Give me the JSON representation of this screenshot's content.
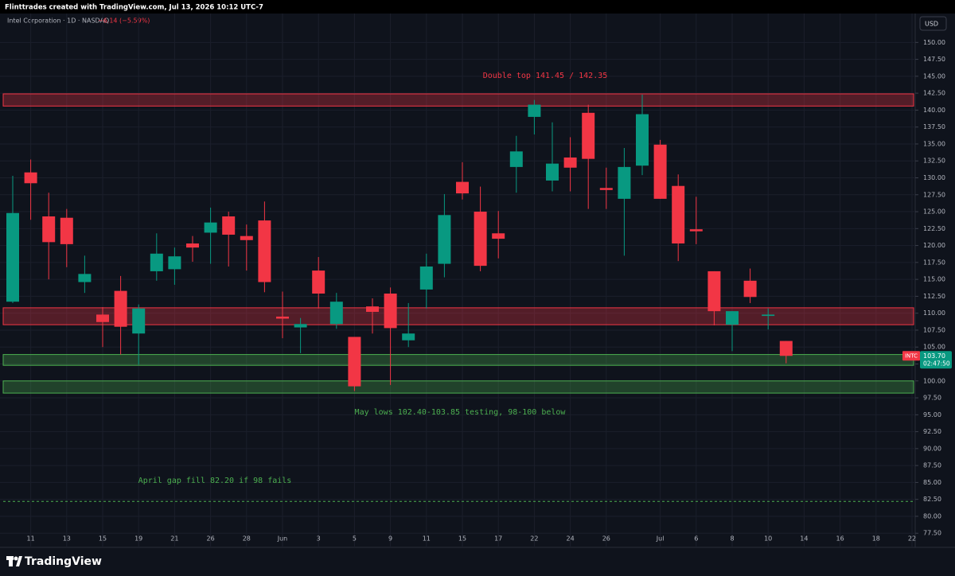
{
  "header": {
    "watermark": "Flinttrades created with TradingView.com, Jul 13, 2026 10:12 UTC-7"
  },
  "footer": {
    "brand": "TradingView"
  },
  "chart_data": {
    "type": "candlestick",
    "title": "Intel Corporation · 1D · NASDAQ",
    "change": "−6.14 (−5.59%)",
    "currency": "USD",
    "up_color": "#089981",
    "down_color": "#f23645",
    "grid": true,
    "categories": [
      null,
      "11",
      null,
      "13",
      null,
      "15",
      null,
      "19",
      null,
      "21",
      null,
      "26",
      null,
      "28",
      null,
      "Jun",
      null,
      "3",
      null,
      "5",
      null,
      "9",
      null,
      "11",
      null,
      "15",
      null,
      "17",
      null,
      "22",
      null,
      "24",
      null,
      "26",
      null,
      null,
      "Jul",
      null,
      "6",
      null,
      "8",
      null,
      "10",
      null,
      "14",
      null,
      "16",
      null,
      "18",
      null,
      "22"
    ],
    "open": [
      111.7,
      130.8,
      124.3,
      124.1,
      114.6,
      109.8,
      113.3,
      107.0,
      116.2,
      116.5,
      120.3,
      121.9,
      124.3,
      121.4,
      123.7,
      109.5,
      107.9,
      116.3,
      108.4,
      106.5,
      111.0,
      112.9,
      106.0,
      113.5,
      117.3,
      129.4,
      125.0,
      121.8,
      131.6,
      139.0,
      129.6,
      133.0,
      139.6,
      128.5,
      126.9,
      131.8,
      134.9,
      128.8,
      122.4,
      116.2,
      108.3,
      114.8,
      109.6,
      105.9,
      null,
      null,
      null,
      null,
      null,
      null,
      null
    ],
    "high": [
      130.3,
      132.7,
      127.8,
      125.4,
      118.5,
      110.9,
      115.5,
      111.3,
      121.8,
      119.7,
      121.4,
      125.6,
      125.0,
      123.1,
      126.5,
      113.2,
      109.3,
      118.3,
      113.0,
      106.5,
      112.2,
      113.8,
      111.5,
      118.8,
      127.6,
      132.3,
      128.7,
      125.1,
      136.2,
      141.5,
      138.2,
      136.0,
      140.8,
      131.5,
      134.4,
      142.3,
      135.6,
      130.5,
      127.2,
      116.2,
      110.3,
      116.6,
      110.7,
      105.9,
      null,
      null,
      null,
      null,
      null,
      null,
      null
    ],
    "low": [
      111.5,
      123.8,
      115.0,
      116.8,
      113.0,
      105.0,
      103.9,
      102.4,
      114.8,
      114.2,
      117.6,
      117.3,
      116.9,
      116.3,
      113.1,
      106.3,
      104.1,
      110.7,
      107.7,
      98.5,
      107.0,
      99.4,
      105.0,
      110.7,
      115.3,
      126.8,
      116.2,
      118.1,
      127.8,
      136.4,
      128.0,
      128.0,
      125.4,
      125.4,
      118.5,
      130.4,
      126.9,
      117.7,
      120.2,
      108.2,
      104.4,
      111.5,
      107.6,
      102.6,
      null,
      null,
      null,
      null,
      null,
      null,
      null
    ],
    "close": [
      124.8,
      129.2,
      120.5,
      120.2,
      115.8,
      108.7,
      108.0,
      110.7,
      118.8,
      118.4,
      119.7,
      123.4,
      121.6,
      120.8,
      114.6,
      109.2,
      108.4,
      112.9,
      111.7,
      99.2,
      110.2,
      107.8,
      107.0,
      116.9,
      124.5,
      127.7,
      117.0,
      121.0,
      133.9,
      140.8,
      132.1,
      131.5,
      132.8,
      128.2,
      131.6,
      139.4,
      126.9,
      120.3,
      122.1,
      110.3,
      110.3,
      112.4,
      109.8,
      103.7,
      null,
      null,
      null,
      null,
      null,
      null,
      null
    ],
    "ylim": [
      76.0,
      151.8
    ],
    "yticks": [
      {
        "value": 77.5,
        "label": "77.50"
      },
      {
        "value": 80,
        "label": "80.00"
      },
      {
        "value": 82.5,
        "label": "82.50"
      },
      {
        "value": 85,
        "label": "85.00"
      },
      {
        "value": 87.5,
        "label": "87.50"
      },
      {
        "value": 90,
        "label": "90.00"
      },
      {
        "value": 92.5,
        "label": "92.50"
      },
      {
        "value": 95,
        "label": "95.00"
      },
      {
        "value": 97.5,
        "label": "97.50"
      },
      {
        "value": 100,
        "label": "100.00"
      },
      {
        "value": 102.5,
        "label": "102.50"
      },
      {
        "value": 105,
        "label": "105.00"
      },
      {
        "value": 107.5,
        "label": "107.50"
      },
      {
        "value": 110,
        "label": "110.00"
      },
      {
        "value": 112.5,
        "label": "112.50"
      },
      {
        "value": 115,
        "label": "115.00"
      },
      {
        "value": 117.5,
        "label": "117.50"
      },
      {
        "value": 120,
        "label": "120.00"
      },
      {
        "value": 122.5,
        "label": "122.50"
      },
      {
        "value": 125,
        "label": "125.00"
      },
      {
        "value": 127.5,
        "label": "127.50"
      },
      {
        "value": 130,
        "label": "130.00"
      },
      {
        "value": 132.5,
        "label": "132.50"
      },
      {
        "value": 135,
        "label": "135.00"
      },
      {
        "value": 137.5,
        "label": "137.50"
      },
      {
        "value": 140,
        "label": "140.00"
      },
      {
        "value": 142.5,
        "label": "142.50"
      },
      {
        "value": 145,
        "label": "145.00"
      },
      {
        "value": 147.5,
        "label": "147.50"
      },
      {
        "value": 150,
        "label": "150.00"
      }
    ],
    "zones": [
      {
        "low": 140.6,
        "high": 142.4,
        "color": "#f23645"
      },
      {
        "low": 108.3,
        "high": 110.8,
        "color": "#f23645"
      },
      {
        "low": 102.3,
        "high": 103.9,
        "color": "#4caf50"
      },
      {
        "low": 98.2,
        "high": 100.0,
        "color": "#4caf50"
      }
    ],
    "lines": [
      {
        "value": 82.2,
        "color": "#4caf50"
      }
    ],
    "annotations": [
      {
        "text": "Double top 141.45 / 142.35",
        "color": "#f23645"
      },
      {
        "text": "May lows 102.40-103.85 testing, 98-100 below",
        "color": "#4caf50"
      },
      {
        "text": "April gap fill 82.20 if 98 fails",
        "color": "#4caf50"
      }
    ],
    "price_tag": {
      "symbol": "INTC",
      "price": {
        "value": 103.7,
        "label": "103.70"
      },
      "countdown": "02:47:50"
    }
  }
}
